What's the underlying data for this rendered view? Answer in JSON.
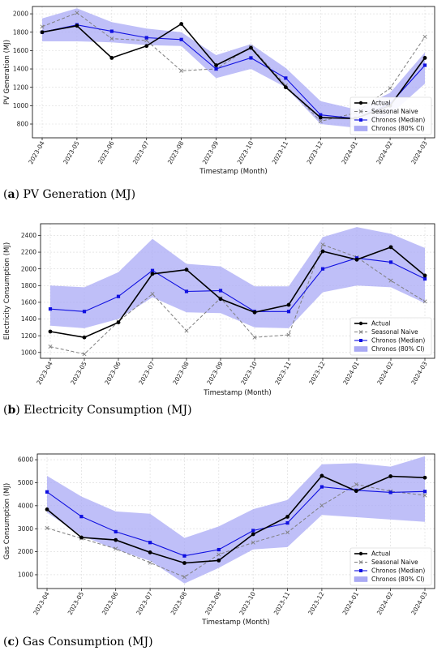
{
  "chart_data": [
    {
      "type": "line",
      "xlabel": "Timestamp (Month)",
      "ylabel": "PV Generation (MJ)",
      "caption_letter": "a",
      "caption_text": "PV Generation (MJ)",
      "categories": [
        "2023-04",
        "2023-05",
        "2023-06",
        "2023-07",
        "2023-08",
        "2023-09",
        "2023-10",
        "2023-11",
        "2023-12",
        "2024-01",
        "2024-02",
        "2024-03"
      ],
      "yticks": [
        800,
        1000,
        1200,
        1400,
        1600,
        1800,
        2000
      ],
      "ylim": [
        650,
        2080
      ],
      "grid": true,
      "legend_position": "bottom-right",
      "series": [
        {
          "name": "Actual",
          "values": [
            1800,
            1870,
            1520,
            1650,
            1890,
            1440,
            1630,
            1200,
            870,
            860,
            1000,
            1520
          ]
        },
        {
          "name": "Seasonal Naive",
          "values": [
            1860,
            2010,
            1730,
            1710,
            1380,
            1400,
            1640,
            1220,
            830,
            920,
            1190,
            1750
          ]
        },
        {
          "name": "Chronos (Median)",
          "values": [
            1800,
            1880,
            1810,
            1740,
            1720,
            1400,
            1520,
            1300,
            900,
            860,
            1020,
            1440
          ]
        },
        {
          "name": "Chronos (80% CI)",
          "lower": [
            1700,
            1700,
            1690,
            1660,
            1650,
            1300,
            1400,
            1200,
            800,
            760,
            900,
            1240
          ],
          "upper": [
            1950,
            2060,
            1910,
            1840,
            1800,
            1550,
            1670,
            1410,
            1050,
            960,
            1140,
            1580
          ]
        }
      ]
    },
    {
      "type": "line",
      "xlabel": "Timestamp (Month)",
      "ylabel": "Electricity Consumption (MJ)",
      "caption_letter": "b",
      "caption_text": "Electricity Consumption (MJ)",
      "categories": [
        "2023-04",
        "2023-05",
        "2023-06",
        "2023-07",
        "2023-08",
        "2023-09",
        "2023-10",
        "2023-11",
        "2023-12",
        "2024-01",
        "2024-02",
        "2024-03"
      ],
      "yticks": [
        1000,
        1200,
        1400,
        1600,
        1800,
        2000,
        2200,
        2400
      ],
      "ylim": [
        930,
        2540
      ],
      "grid": true,
      "legend_position": "bottom-right",
      "series": [
        {
          "name": "Actual",
          "values": [
            1250,
            1180,
            1360,
            1940,
            1990,
            1640,
            1480,
            1570,
            2210,
            2110,
            2260,
            1920
          ]
        },
        {
          "name": "Seasonal Naive",
          "values": [
            1070,
            980,
            1370,
            1700,
            1260,
            1650,
            1180,
            1210,
            2290,
            2140,
            1860,
            1610
          ]
        },
        {
          "name": "Chronos (Median)",
          "values": [
            1520,
            1490,
            1670,
            1980,
            1730,
            1740,
            1490,
            1490,
            2000,
            2130,
            2080,
            1880
          ]
        },
        {
          "name": "Chronos (80% CI)",
          "lower": [
            1320,
            1290,
            1400,
            1660,
            1480,
            1470,
            1300,
            1290,
            1720,
            1800,
            1780,
            1590
          ],
          "upper": [
            1800,
            1780,
            1960,
            2360,
            2060,
            2030,
            1790,
            1790,
            2380,
            2500,
            2420,
            2250
          ]
        }
      ]
    },
    {
      "type": "line",
      "xlabel": "Timestamp (Month)",
      "ylabel": "Gas Consumption (MJ)",
      "caption_letter": "c",
      "caption_text": "Gas Consumption (MJ)",
      "categories": [
        "2023-04",
        "2023-05",
        "2023-06",
        "2023-07",
        "2023-08",
        "2023-09",
        "2023-10",
        "2023-11",
        "2023-12",
        "2024-01",
        "2024-02",
        "2024-03"
      ],
      "yticks": [
        1000,
        2000,
        3000,
        4000,
        5000,
        6000
      ],
      "ylim": [
        400,
        6250
      ],
      "grid": true,
      "legend_position": "bottom-right",
      "series": [
        {
          "name": "Actual",
          "values": [
            3840,
            2620,
            2510,
            1970,
            1510,
            1620,
            2760,
            3520,
            5300,
            4640,
            5280,
            5220
          ]
        },
        {
          "name": "Seasonal Naive",
          "values": [
            3030,
            2580,
            2130,
            1520,
            900,
            1880,
            2400,
            2840,
            4010,
            4930,
            4630,
            4450
          ]
        },
        {
          "name": "Chronos (Median)",
          "values": [
            4600,
            3530,
            2870,
            2400,
            1820,
            2090,
            2920,
            3250,
            4820,
            4670,
            4580,
            4620
          ]
        },
        {
          "name": "Chronos (80% CI)",
          "lower": [
            3700,
            2700,
            2100,
            1600,
            620,
            1300,
            2100,
            2200,
            3600,
            3500,
            3400,
            3300
          ],
          "upper": [
            5300,
            4400,
            3750,
            3650,
            2600,
            3100,
            3850,
            4250,
            5800,
            5850,
            5700,
            6150
          ]
        }
      ]
    }
  ],
  "colors": {
    "actual": "#000000",
    "naive": "#7f7f7f",
    "median": "#1010e0",
    "band": "#aaaaf5"
  }
}
